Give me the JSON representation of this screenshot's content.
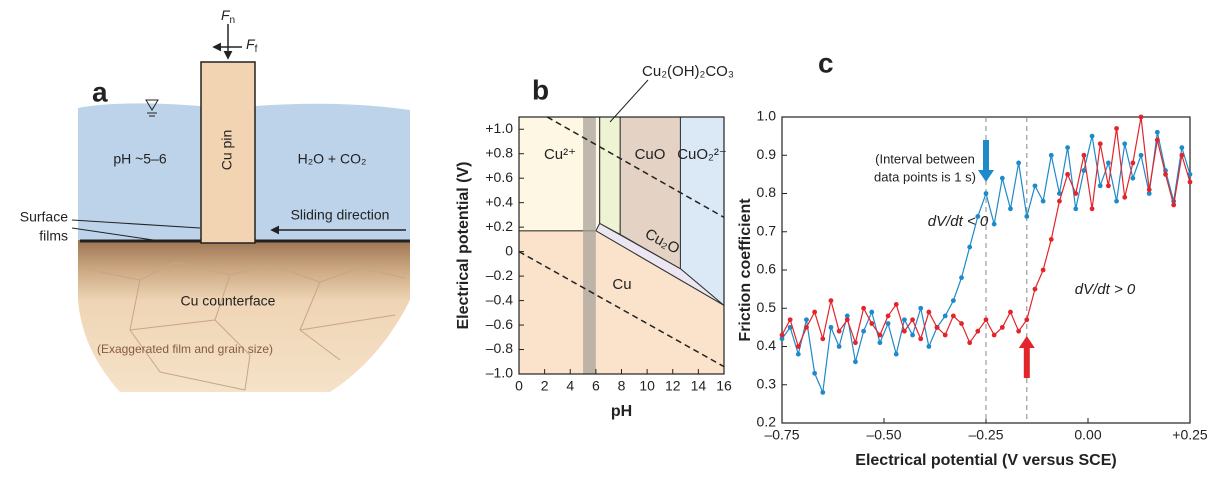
{
  "panel_a": {
    "panel_label": "a",
    "normal_force": [
      "F",
      "n"
    ],
    "friction_force": [
      "F",
      "f"
    ],
    "water_text": "pH ~5–6",
    "gas_text": "H₂O + CO₂",
    "pin_label": "Cu pin",
    "films_label": [
      "Surface",
      "films"
    ],
    "sliding_label": "Sliding direction",
    "counterface_label": "Cu counterface",
    "note": "(Exaggerated film and grain size)"
  },
  "chart_data": [
    {
      "type": "region",
      "panel_label": "b",
      "xlabel": "pH",
      "ylabel": "Electrical potential (V)",
      "xlim": [
        0,
        16
      ],
      "ylim": [
        -1.0,
        1.1
      ],
      "xticks": [
        0,
        2,
        4,
        6,
        8,
        10,
        12,
        14,
        16
      ],
      "yticks": [
        {
          "value": 1.0,
          "label": "+1.0"
        },
        {
          "value": 0.8,
          "label": "+0.8"
        },
        {
          "value": 0.6,
          "label": "+0.6"
        },
        {
          "value": 0.4,
          "label": "+0.4"
        },
        {
          "value": 0.2,
          "label": "+0.2"
        },
        0,
        {
          "value": -0.2,
          "label": "–0.2"
        },
        {
          "value": -0.4,
          "label": "–0.4"
        },
        {
          "value": -0.6,
          "label": "–0.6"
        },
        {
          "value": -0.8,
          "label": "–0.8"
        },
        {
          "value": -1.0,
          "label": "–1.0"
        }
      ],
      "regions": [
        {
          "label": "Cu²⁺",
          "color": "#fdf7e3",
          "label_color": "#c98a12",
          "points": [
            [
              0,
              1.1
            ],
            [
              6.3,
              1.1
            ],
            [
              6.3,
              0.23
            ],
            [
              6.0,
              0.17
            ],
            [
              0,
              0.17
            ]
          ]
        },
        {
          "label": "Cu₂(OH)₂CO₃",
          "color": "#eef4d3",
          "label_color": "#3e9a3e",
          "points": [
            [
              6.3,
              1.1
            ],
            [
              7.9,
              1.1
            ],
            [
              7.9,
              0.14
            ],
            [
              6.3,
              0.23
            ]
          ]
        },
        {
          "label": "CuO",
          "color": "#e4d3c4",
          "label_color": "#8a5a3c",
          "points": [
            [
              7.9,
              1.1
            ],
            [
              12.6,
              1.1
            ],
            [
              12.6,
              -0.14
            ],
            [
              7.9,
              0.14
            ]
          ]
        },
        {
          "label": "CuO₂²⁻",
          "color": "#dbe8f5",
          "label_color": "#1f8fd0",
          "points": [
            [
              12.6,
              1.1
            ],
            [
              16,
              1.1
            ],
            [
              16,
              -0.44
            ],
            [
              12.6,
              -0.14
            ]
          ]
        },
        {
          "label": "Cu₂O",
          "color": "#ece5f2",
          "label_color": "#6a2b8a",
          "points": [
            [
              6.0,
              0.17
            ],
            [
              6.3,
              0.23
            ],
            [
              12.6,
              -0.14
            ],
            [
              16,
              -0.44
            ]
          ]
        },
        {
          "label": "Cu",
          "color": "#fbe3cb",
          "label_color": "#c0632a",
          "points": [
            [
              0,
              0.17
            ],
            [
              6.0,
              0.17
            ],
            [
              16,
              -0.44
            ],
            [
              16,
              -1.0
            ],
            [
              0,
              -1.0
            ]
          ]
        }
      ],
      "band": [
        5,
        6
      ],
      "dashed_lines": [
        [
          [
            2.2,
            1.1
          ],
          [
            16,
            0.28
          ]
        ],
        [
          [
            0,
            0
          ],
          [
            16,
            -0.94
          ]
        ]
      ]
    },
    {
      "type": "line",
      "panel_label": "c",
      "xlabel": "Electrical potential (V versus SCE)",
      "ylabel": "Friction coefficient",
      "xlim": [
        -0.75,
        0.25
      ],
      "ylim": [
        0.2,
        1.0
      ],
      "xticks": [
        {
          "value": -0.75,
          "label": "–0.75"
        },
        {
          "value": -0.5,
          "label": "–0.50"
        },
        {
          "value": -0.25,
          "label": "–0.25"
        },
        {
          "value": 0,
          "label": "0.00"
        },
        {
          "value": 0.25,
          "label": "+0.25"
        }
      ],
      "yticks": [
        0.2,
        0.3,
        0.4,
        0.5,
        0.6,
        0.7,
        0.8,
        0.9,
        {
          "value": 1.0,
          "label": "1.0"
        }
      ],
      "annotation": [
        "(Interval between",
        "data points is 1 s)"
      ],
      "vlines": [
        -0.25,
        -0.15
      ],
      "x": [
        -0.75,
        -0.73,
        -0.71,
        -0.69,
        -0.67,
        -0.65,
        -0.63,
        -0.61,
        -0.59,
        -0.57,
        -0.55,
        -0.53,
        -0.51,
        -0.49,
        -0.47,
        -0.45,
        -0.43,
        -0.41,
        -0.39,
        -0.37,
        -0.35,
        -0.33,
        -0.31,
        -0.29,
        -0.27,
        -0.25,
        -0.23,
        -0.21,
        -0.19,
        -0.17,
        -0.15,
        -0.13,
        -0.11,
        -0.09,
        -0.07,
        -0.05,
        -0.03,
        -0.01,
        0.01,
        0.03,
        0.05,
        0.07,
        0.09,
        0.11,
        0.13,
        0.15,
        0.17,
        0.19,
        0.21,
        0.23,
        0.25
      ],
      "series": [
        {
          "name": "dV/dt < 0",
          "color": "#1f8ac9",
          "values": [
            0.42,
            0.45,
            0.38,
            0.47,
            0.33,
            0.28,
            0.45,
            0.4,
            0.48,
            0.36,
            0.44,
            0.49,
            0.41,
            0.46,
            0.38,
            0.47,
            0.43,
            0.5,
            0.4,
            0.45,
            0.48,
            0.52,
            0.58,
            0.66,
            0.74,
            0.8,
            0.72,
            0.84,
            0.76,
            0.88,
            0.74,
            0.82,
            0.78,
            0.9,
            0.8,
            0.92,
            0.76,
            0.86,
            0.95,
            0.82,
            0.88,
            0.78,
            0.93,
            0.84,
            0.9,
            0.8,
            0.96,
            0.86,
            0.78,
            0.92,
            0.85
          ]
        },
        {
          "name": "dV/dt > 0",
          "color": "#e3242b",
          "values": [
            0.43,
            0.47,
            0.4,
            0.45,
            0.49,
            0.42,
            0.52,
            0.44,
            0.47,
            0.41,
            0.5,
            0.46,
            0.43,
            0.48,
            0.51,
            0.44,
            0.47,
            0.42,
            0.49,
            0.45,
            0.43,
            0.48,
            0.46,
            0.41,
            0.44,
            0.47,
            0.43,
            0.45,
            0.49,
            0.44,
            0.47,
            0.55,
            0.6,
            0.68,
            0.78,
            0.85,
            0.8,
            0.9,
            0.76,
            0.93,
            0.82,
            0.97,
            0.79,
            0.88,
            1.0,
            0.81,
            0.94,
            0.85,
            0.77,
            0.9,
            0.83
          ]
        }
      ]
    }
  ]
}
